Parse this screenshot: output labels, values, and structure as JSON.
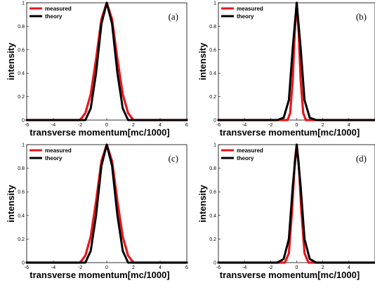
{
  "chart_data": [
    {
      "type": "line",
      "panel_label": "(a)",
      "xlabel": "transverse momentum[mc/1000]",
      "ylabel": "intensity",
      "xlim": [
        -6,
        6
      ],
      "ylim": [
        0,
        1
      ],
      "xticks": [
        "-6",
        "-4",
        "-2",
        "0",
        "2",
        "4",
        "6"
      ],
      "yticks": [
        "0",
        "0.2",
        "0.4",
        "0.6",
        "0.8",
        "1"
      ],
      "legend_position": "top-left",
      "colors": {
        "measured": "#e8161b",
        "theory": "#000000"
      },
      "series": [
        {
          "name": "measured",
          "x": [
            -6,
            -2.0,
            -1.6,
            -1.2,
            -0.8,
            -0.4,
            0,
            0.4,
            0.8,
            1.2,
            1.6,
            2.0,
            6
          ],
          "y": [
            0,
            0.0,
            0.06,
            0.22,
            0.52,
            0.86,
            1.0,
            0.86,
            0.52,
            0.22,
            0.06,
            0.0,
            0
          ]
        },
        {
          "name": "theory",
          "x": [
            -6,
            -1.6,
            -1.2,
            -0.8,
            -0.4,
            0,
            0.4,
            0.8,
            1.2,
            1.6,
            6
          ],
          "y": [
            0,
            0.0,
            0.1,
            0.4,
            0.82,
            1.0,
            0.82,
            0.4,
            0.1,
            0.0,
            0
          ]
        }
      ]
    },
    {
      "type": "line",
      "panel_label": "(b)",
      "xlabel": "transverse momentum[mc/1000]",
      "ylabel": "intensity",
      "xlim": [
        -6,
        6
      ],
      "ylim": [
        0,
        1
      ],
      "xticks": [
        "-6",
        "-4",
        "-2",
        "0",
        "2",
        "4"
      ],
      "yticks": [
        "0",
        "0.2",
        "0.4",
        "0.6",
        "0.8",
        "1"
      ],
      "legend_position": "top-left",
      "colors": {
        "measured": "#e8161b",
        "theory": "#000000"
      },
      "series": [
        {
          "name": "measured",
          "x": [
            -6,
            -0.7,
            -0.5,
            -0.3,
            -0.15,
            0,
            0.15,
            0.3,
            0.5,
            0.7,
            6
          ],
          "y": [
            0,
            0.0,
            0.06,
            0.35,
            0.75,
            1.0,
            0.75,
            0.35,
            0.06,
            0.0,
            0
          ]
        },
        {
          "name": "theory",
          "x": [
            -6,
            -1.5,
            -1.0,
            -0.6,
            -0.3,
            0,
            0.3,
            0.6,
            1.0,
            1.5,
            6
          ],
          "y": [
            0,
            0.0,
            0.02,
            0.17,
            0.62,
            1.0,
            0.62,
            0.17,
            0.02,
            0.0,
            0
          ]
        }
      ]
    },
    {
      "type": "line",
      "panel_label": "(c)",
      "xlabel": "transverse momentum[mc/1000]",
      "ylabel": "intensity",
      "xlim": [
        -6,
        6
      ],
      "ylim": [
        0,
        1
      ],
      "xticks": [
        "-6",
        "-4",
        "-2",
        "0",
        "2",
        "4",
        "6"
      ],
      "yticks": [
        "0",
        "0.2",
        "0.4",
        "0.6",
        "0.8",
        "1"
      ],
      "legend_position": "top-left",
      "colors": {
        "measured": "#e8161b",
        "theory": "#000000"
      },
      "series": [
        {
          "name": "measured",
          "x": [
            -6,
            -2.0,
            -1.6,
            -1.2,
            -0.8,
            -0.4,
            0,
            0.4,
            0.8,
            1.2,
            1.6,
            2.0,
            6
          ],
          "y": [
            0,
            0.0,
            0.06,
            0.22,
            0.52,
            0.86,
            1.0,
            0.86,
            0.52,
            0.22,
            0.06,
            0.0,
            0
          ]
        },
        {
          "name": "theory",
          "x": [
            -6,
            -1.6,
            -1.2,
            -0.8,
            -0.4,
            0,
            0.4,
            0.8,
            1.2,
            1.6,
            6
          ],
          "y": [
            0,
            0.0,
            0.1,
            0.4,
            0.82,
            1.0,
            0.82,
            0.4,
            0.1,
            0.0,
            0
          ]
        }
      ]
    },
    {
      "type": "line",
      "panel_label": "(d)",
      "xlabel": "transverse momentum[mc/1000]",
      "ylabel": "intensity",
      "xlim": [
        -6,
        6
      ],
      "ylim": [
        0,
        1
      ],
      "xticks": [
        "-6",
        "-4",
        "-2",
        "0",
        "2",
        "4"
      ],
      "yticks": [
        "0",
        "0.2",
        "0.4",
        "0.6",
        "0.8",
        "1"
      ],
      "legend_position": "top-left",
      "colors": {
        "measured": "#e8161b",
        "theory": "#000000"
      },
      "series": [
        {
          "name": "measured",
          "x": [
            -6,
            -0.9,
            -0.6,
            -0.35,
            -0.15,
            0,
            0.15,
            0.35,
            0.6,
            0.9,
            6
          ],
          "y": [
            0,
            0.0,
            0.08,
            0.45,
            0.85,
            1.0,
            0.85,
            0.45,
            0.08,
            0.0,
            0
          ]
        },
        {
          "name": "theory",
          "x": [
            -6,
            -1.5,
            -1.0,
            -0.6,
            -0.3,
            0,
            0.3,
            0.6,
            1.0,
            1.5,
            6
          ],
          "y": [
            0,
            0.0,
            0.03,
            0.2,
            0.65,
            1.0,
            0.65,
            0.2,
            0.03,
            0.0,
            0
          ]
        }
      ]
    }
  ]
}
